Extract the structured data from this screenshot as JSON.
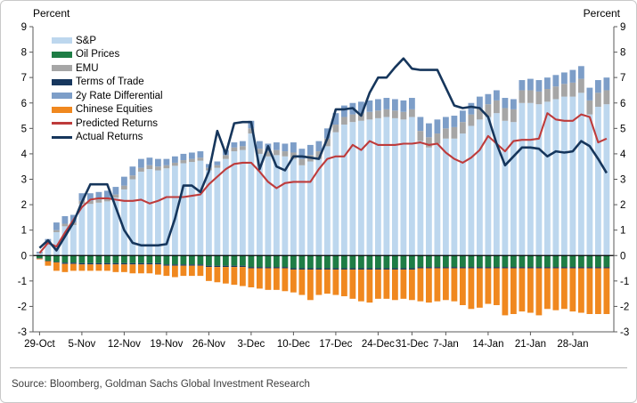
{
  "header": {
    "left_axis_label": "Percent",
    "right_axis_label": "Percent"
  },
  "source": {
    "text": "Source: Bloomberg, Goldman Sachs Global Investment Research"
  },
  "colors": {
    "sp": "#BDD7EE",
    "oil": "#1E7D45",
    "emu": "#A6A6A6",
    "terms_of_trade": "#17375E",
    "rate_differential": "#7D9EC8",
    "chinese_equities": "#F0881F",
    "predicted_line": "#BE3B3B",
    "actual_line": "#16365C",
    "axis": "#595959",
    "zero_line": "#000000"
  },
  "chart_data": {
    "type": "bar",
    "subtype": "stacked-bars-with-lines",
    "title": "",
    "xlabel": "",
    "ylabel": "Percent",
    "ylim": [
      -3,
      9
    ],
    "y_ticks": [
      -3,
      -2,
      -1,
      0,
      1,
      2,
      3,
      4,
      5,
      6,
      7,
      8,
      9
    ],
    "grid": false,
    "legend_position": "top-left",
    "x": [
      "29-Oct",
      "30-Oct",
      "31-Oct",
      "1-Nov",
      "2-Nov",
      "5-Nov",
      "6-Nov",
      "7-Nov",
      "8-Nov",
      "9-Nov",
      "12-Nov",
      "13-Nov",
      "14-Nov",
      "15-Nov",
      "16-Nov",
      "19-Nov",
      "20-Nov",
      "21-Nov",
      "22-Nov",
      "23-Nov",
      "26-Nov",
      "27-Nov",
      "28-Nov",
      "29-Nov",
      "30-Nov",
      "3-Dec",
      "4-Dec",
      "5-Dec",
      "6-Dec",
      "7-Dec",
      "10-Dec",
      "11-Dec",
      "12-Dec",
      "13-Dec",
      "14-Dec",
      "17-Dec",
      "18-Dec",
      "19-Dec",
      "20-Dec",
      "21-Dec",
      "24-Dec",
      "26-Dec",
      "27-Dec",
      "28-Dec",
      "31-Dec",
      "2-Jan",
      "3-Jan",
      "4-Jan",
      "7-Jan",
      "8-Jan",
      "9-Jan",
      "10-Jan",
      "11-Jan",
      "14-Jan",
      "15-Jan",
      "16-Jan",
      "17-Jan",
      "18-Jan",
      "21-Jan",
      "22-Jan",
      "23-Jan",
      "24-Jan",
      "25-Jan",
      "28-Jan",
      "29-Jan",
      "30-Jan",
      "31-Jan",
      "1-Feb"
    ],
    "x_tick_labels": [
      "29-Oct",
      "5-Nov",
      "12-Nov",
      "19-Nov",
      "26-Nov",
      "3-Dec",
      "10-Dec",
      "17-Dec",
      "24-Dec",
      "31-Dec",
      "7-Jan",
      "14-Jan",
      "21-Jan",
      "28-Jan"
    ],
    "x_tick_day_indices": [
      0,
      5,
      10,
      15,
      20,
      25,
      30,
      35,
      40,
      44,
      48,
      53,
      58,
      63
    ],
    "series": [
      {
        "name": "S&P",
        "type": "bar",
        "color": "#BDD7EE",
        "values": [
          0.08,
          0.45,
          0.92,
          1.15,
          1.2,
          2.03,
          2.03,
          2.08,
          2.13,
          2.28,
          2.6,
          3.0,
          3.3,
          3.4,
          3.35,
          3.43,
          3.53,
          3.63,
          3.68,
          3.73,
          3.35,
          3.45,
          3.8,
          4.1,
          4.15,
          4.8,
          4.0,
          3.9,
          3.95,
          3.9,
          3.8,
          3.55,
          3.7,
          3.8,
          4.3,
          4.85,
          5.15,
          5.25,
          5.3,
          5.35,
          5.4,
          5.45,
          5.4,
          5.35,
          5.45,
          4.5,
          4.25,
          4.4,
          4.6,
          4.6,
          4.8,
          5.1,
          5.35,
          5.45,
          5.6,
          5.3,
          5.25,
          6.0,
          6.0,
          5.95,
          6.05,
          6.15,
          6.25,
          6.25,
          6.4,
          5.55,
          5.85,
          5.95
        ]
      },
      {
        "name": "Oil Prices",
        "type": "bar",
        "color": "#1E7D45",
        "values": [
          -0.1,
          -0.2,
          -0.25,
          -0.28,
          -0.28,
          -0.3,
          -0.3,
          -0.3,
          -0.3,
          -0.3,
          -0.3,
          -0.3,
          -0.3,
          -0.3,
          -0.3,
          -0.35,
          -0.35,
          -0.35,
          -0.35,
          -0.35,
          -0.4,
          -0.4,
          -0.4,
          -0.4,
          -0.4,
          -0.45,
          -0.45,
          -0.45,
          -0.45,
          -0.45,
          -0.5,
          -0.5,
          -0.5,
          -0.5,
          -0.5,
          -0.5,
          -0.5,
          -0.5,
          -0.5,
          -0.5,
          -0.5,
          -0.5,
          -0.5,
          -0.5,
          -0.5,
          -0.45,
          -0.45,
          -0.45,
          -0.45,
          -0.45,
          -0.45,
          -0.45,
          -0.45,
          -0.45,
          -0.45,
          -0.45,
          -0.45,
          -0.45,
          -0.45,
          -0.45,
          -0.45,
          -0.45,
          -0.45,
          -0.45,
          -0.45,
          -0.45,
          -0.45,
          -0.45
        ]
      },
      {
        "name": "EMU",
        "type": "bar",
        "color": "#A6A6A6",
        "values": [
          0.02,
          0.05,
          0.08,
          0.1,
          0.1,
          0.12,
          0.12,
          0.12,
          0.12,
          0.12,
          0.15,
          0.15,
          0.15,
          0.15,
          0.15,
          0.12,
          0.12,
          0.12,
          0.12,
          0.12,
          0.1,
          0.1,
          0.15,
          0.15,
          0.15,
          0.2,
          0.2,
          0.2,
          0.2,
          0.2,
          0.25,
          0.25,
          0.25,
          0.3,
          0.3,
          0.3,
          0.3,
          0.3,
          0.3,
          0.3,
          0.3,
          0.3,
          0.3,
          0.3,
          0.3,
          0.4,
          0.4,
          0.4,
          0.4,
          0.45,
          0.45,
          0.45,
          0.45,
          0.5,
          0.5,
          0.5,
          0.5,
          0.5,
          0.5,
          0.5,
          0.5,
          0.5,
          0.5,
          0.55,
          0.55,
          0.55,
          0.55,
          0.55
        ]
      },
      {
        "name": "Terms of Trade",
        "type": "bar",
        "color": "#17375E",
        "values": [
          -0.02,
          -0.02,
          -0.02,
          -0.05,
          -0.05,
          -0.05,
          -0.05,
          -0.05,
          -0.05,
          -0.05,
          -0.05,
          -0.05,
          -0.05,
          -0.05,
          -0.05,
          -0.05,
          -0.05,
          -0.05,
          -0.05,
          -0.05,
          -0.05,
          -0.05,
          -0.05,
          -0.05,
          -0.05,
          -0.05,
          -0.05,
          -0.05,
          -0.05,
          -0.05,
          -0.05,
          -0.05,
          -0.05,
          -0.05,
          -0.05,
          -0.05,
          -0.05,
          -0.05,
          -0.05,
          -0.05,
          -0.05,
          -0.05,
          -0.05,
          -0.05,
          -0.05,
          -0.05,
          -0.05,
          -0.05,
          -0.05,
          -0.05,
          -0.05,
          -0.05,
          -0.05,
          -0.05,
          -0.05,
          -0.05,
          -0.05,
          -0.05,
          -0.05,
          -0.05,
          -0.05,
          -0.05,
          -0.05,
          -0.05,
          -0.05,
          -0.05,
          -0.05,
          -0.05
        ]
      },
      {
        "name": "2y Rate Differential",
        "type": "bar",
        "color": "#7D9EC8",
        "values": [
          0.05,
          0.15,
          0.3,
          0.3,
          0.3,
          0.3,
          0.3,
          0.3,
          0.3,
          0.3,
          0.35,
          0.35,
          0.35,
          0.3,
          0.3,
          0.25,
          0.25,
          0.25,
          0.25,
          0.25,
          0.15,
          0.15,
          0.2,
          0.2,
          0.2,
          0.3,
          0.3,
          0.3,
          0.3,
          0.3,
          0.4,
          0.4,
          0.4,
          0.4,
          0.4,
          0.45,
          0.45,
          0.45,
          0.45,
          0.45,
          0.45,
          0.45,
          0.45,
          0.45,
          0.45,
          0.55,
          0.55,
          0.55,
          0.45,
          0.45,
          0.45,
          0.45,
          0.45,
          0.4,
          0.4,
          0.4,
          0.4,
          0.4,
          0.45,
          0.45,
          0.45,
          0.45,
          0.45,
          0.5,
          0.5,
          0.5,
          0.5,
          0.5
        ]
      },
      {
        "name": "Chinese Equities",
        "type": "bar",
        "color": "#F0881F",
        "values": [
          -0.03,
          -0.18,
          -0.33,
          -0.32,
          -0.27,
          -0.25,
          -0.25,
          -0.25,
          -0.25,
          -0.3,
          -0.3,
          -0.35,
          -0.35,
          -0.35,
          -0.4,
          -0.4,
          -0.45,
          -0.4,
          -0.4,
          -0.4,
          -0.55,
          -0.6,
          -0.65,
          -0.7,
          -0.75,
          -0.75,
          -0.8,
          -0.85,
          -0.85,
          -0.9,
          -0.9,
          -1.0,
          -1.2,
          -1.0,
          -0.95,
          -1.0,
          -1.05,
          -1.15,
          -1.25,
          -1.3,
          -1.15,
          -1.15,
          -1.2,
          -1.15,
          -1.2,
          -1.3,
          -1.35,
          -1.3,
          -1.25,
          -1.3,
          -1.45,
          -1.6,
          -1.55,
          -1.4,
          -1.45,
          -1.85,
          -1.8,
          -1.7,
          -1.75,
          -1.85,
          -1.6,
          -1.65,
          -1.6,
          -1.7,
          -1.75,
          -1.8,
          -1.8,
          -1.8
        ]
      },
      {
        "name": "Predicted Returns",
        "type": "line",
        "color": "#BE3B3B",
        "values": [
          0.1,
          0.5,
          0.35,
          0.9,
          1.4,
          1.9,
          2.2,
          2.25,
          2.25,
          2.2,
          2.15,
          2.15,
          2.2,
          2.05,
          2.15,
          2.3,
          2.3,
          2.3,
          2.35,
          2.4,
          2.8,
          3.1,
          3.4,
          3.6,
          3.65,
          3.65,
          3.3,
          2.9,
          2.65,
          2.85,
          2.9,
          2.9,
          2.9,
          3.4,
          3.8,
          3.9,
          3.9,
          4.35,
          4.15,
          4.5,
          4.35,
          4.35,
          4.35,
          4.4,
          4.4,
          4.45,
          4.35,
          4.4,
          4.05,
          3.8,
          3.65,
          3.85,
          4.15,
          4.7,
          4.4,
          4.1,
          4.5,
          4.55,
          4.55,
          4.6,
          5.6,
          5.35,
          5.3,
          5.3,
          5.55,
          5.45,
          4.45,
          4.6
        ]
      },
      {
        "name": "Actual Returns",
        "type": "line",
        "color": "#16365C",
        "values": [
          0.3,
          0.6,
          0.2,
          0.75,
          1.3,
          2.1,
          2.8,
          2.8,
          2.8,
          1.9,
          1.0,
          0.5,
          0.4,
          0.4,
          0.4,
          0.45,
          1.45,
          2.75,
          2.75,
          2.5,
          3.3,
          4.9,
          4.0,
          5.2,
          5.25,
          5.25,
          3.4,
          4.3,
          3.5,
          3.35,
          3.9,
          3.9,
          3.85,
          3.8,
          4.6,
          5.75,
          5.75,
          5.8,
          5.5,
          6.4,
          7.0,
          7.0,
          7.4,
          7.75,
          7.35,
          7.3,
          7.3,
          7.3,
          6.6,
          5.9,
          5.8,
          5.85,
          5.8,
          5.45,
          4.4,
          3.55,
          3.9,
          4.25,
          4.25,
          4.2,
          3.9,
          4.1,
          4.05,
          4.1,
          4.5,
          4.3,
          3.8,
          3.25
        ]
      }
    ]
  }
}
